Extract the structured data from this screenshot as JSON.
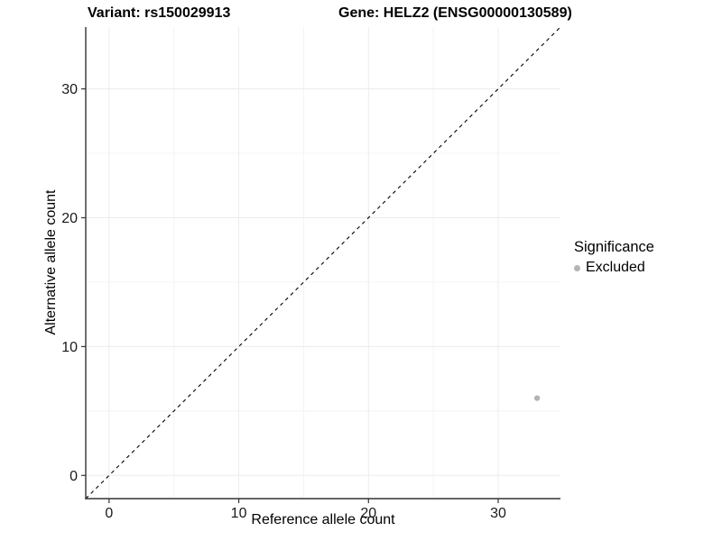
{
  "header": {
    "left_title": "Variant: rs150029913",
    "right_title": "Gene: HELZ2 (ENSG00000130589)"
  },
  "chart_data": {
    "type": "scatter",
    "title_left": "Variant: rs150029913",
    "title_right": "Gene: HELZ2 (ENSG00000130589)",
    "xlabel": "Reference allele count",
    "ylabel": "Alternative allele count",
    "xlim": [
      -1.8,
      34.8
    ],
    "ylim": [
      -1.8,
      34.8
    ],
    "x_ticks": [
      0,
      10,
      20,
      30
    ],
    "y_ticks": [
      0,
      10,
      20,
      30
    ],
    "x_minor_ticks": [
      5,
      15,
      25
    ],
    "y_minor_ticks": [
      5,
      15,
      25
    ],
    "grid": true,
    "reference_line": {
      "type": "identity",
      "slope": 1,
      "intercept": 0,
      "style": "dashed",
      "color": "#000000"
    },
    "series": [
      {
        "name": "Excluded",
        "color": "#b4b4b4",
        "points": [
          {
            "x": 33,
            "y": 6
          }
        ]
      }
    ],
    "legend": {
      "title": "Significance",
      "position": "right",
      "items": [
        {
          "label": "Excluded",
          "color": "#b4b4b4",
          "marker": "point-icon"
        }
      ]
    },
    "colors": {
      "axis_line": "#333333",
      "tick_label": "#1a1a1a",
      "major_grid": "#ececec",
      "minor_grid": "#f4f4f4",
      "background": "#ffffff"
    }
  }
}
